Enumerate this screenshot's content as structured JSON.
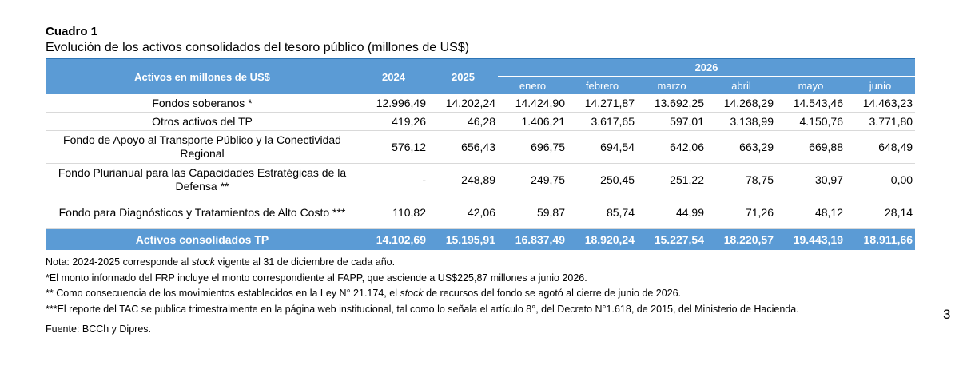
{
  "title": "Cuadro 1",
  "subtitle": "Evolución de los activos consolidados del tesoro público (millones de US$)",
  "table": {
    "header": {
      "label": "Activos en millones de US$",
      "years": [
        "2024",
        "2025"
      ],
      "group": "2026",
      "months": [
        "enero",
        "febrero",
        "marzo",
        "abril",
        "mayo",
        "junio"
      ]
    },
    "rows": [
      {
        "label": "Fondos soberanos *",
        "values": [
          "12.996,49",
          "14.202,24",
          "14.424,90",
          "14.271,87",
          "13.692,25",
          "14.268,29",
          "14.543,46",
          "14.463,23"
        ]
      },
      {
        "label": "Otros activos del TP",
        "values": [
          "419,26",
          "46,28",
          "1.406,21",
          "3.617,65",
          "597,01",
          "3.138,99",
          "4.150,76",
          "3.771,80"
        ]
      },
      {
        "label": "Fondo de Apoyo al Transporte Público y la Conectividad Regional",
        "values": [
          "576,12",
          "656,43",
          "696,75",
          "694,54",
          "642,06",
          "663,29",
          "669,88",
          "648,49"
        ]
      },
      {
        "label": "Fondo Plurianual para las Capacidades Estratégicas de la Defensa **",
        "values": [
          "-",
          "248,89",
          "249,75",
          "250,45",
          "251,22",
          "78,75",
          "30,97",
          "0,00"
        ]
      },
      {
        "label": "Fondo para Diagnósticos y Tratamientos de Alto Costo ***",
        "values": [
          "110,82",
          "42,06",
          "59,87",
          "85,74",
          "44,99",
          "71,26",
          "48,12",
          "28,14"
        ]
      }
    ],
    "total": {
      "label": "Activos consolidados TP",
      "values": [
        "14.102,69",
        "15.195,91",
        "16.837,49",
        "18.920,24",
        "15.227,54",
        "18.220,57",
        "19.443,19",
        "18.911,66"
      ]
    }
  },
  "notes": {
    "note1_pre": "Nota: 2024-2025 corresponde al ",
    "note1_em": "stock",
    "note1_post": " vigente al 31 de diciembre de cada año.",
    "note2": "*El monto informado del FRP incluye el monto correspondiente al FAPP, que asciende a US$225,87 millones a junio 2026.",
    "note3_pre": "** Como consecuencia de los movimientos establecidos en la Ley N° 21.174, el ",
    "note3_em": "stock",
    "note3_post": " de recursos del fondo se agotó al cierre de junio de 2026.",
    "note4": "***El reporte del TAC se publica trimestralmente en la página web institucional, tal como lo señala el artículo 8°, del Decreto N°1.618, de 2015, del Ministerio de Hacienda.",
    "source": "Fuente: BCCh y Dipres."
  },
  "page_number": "3"
}
